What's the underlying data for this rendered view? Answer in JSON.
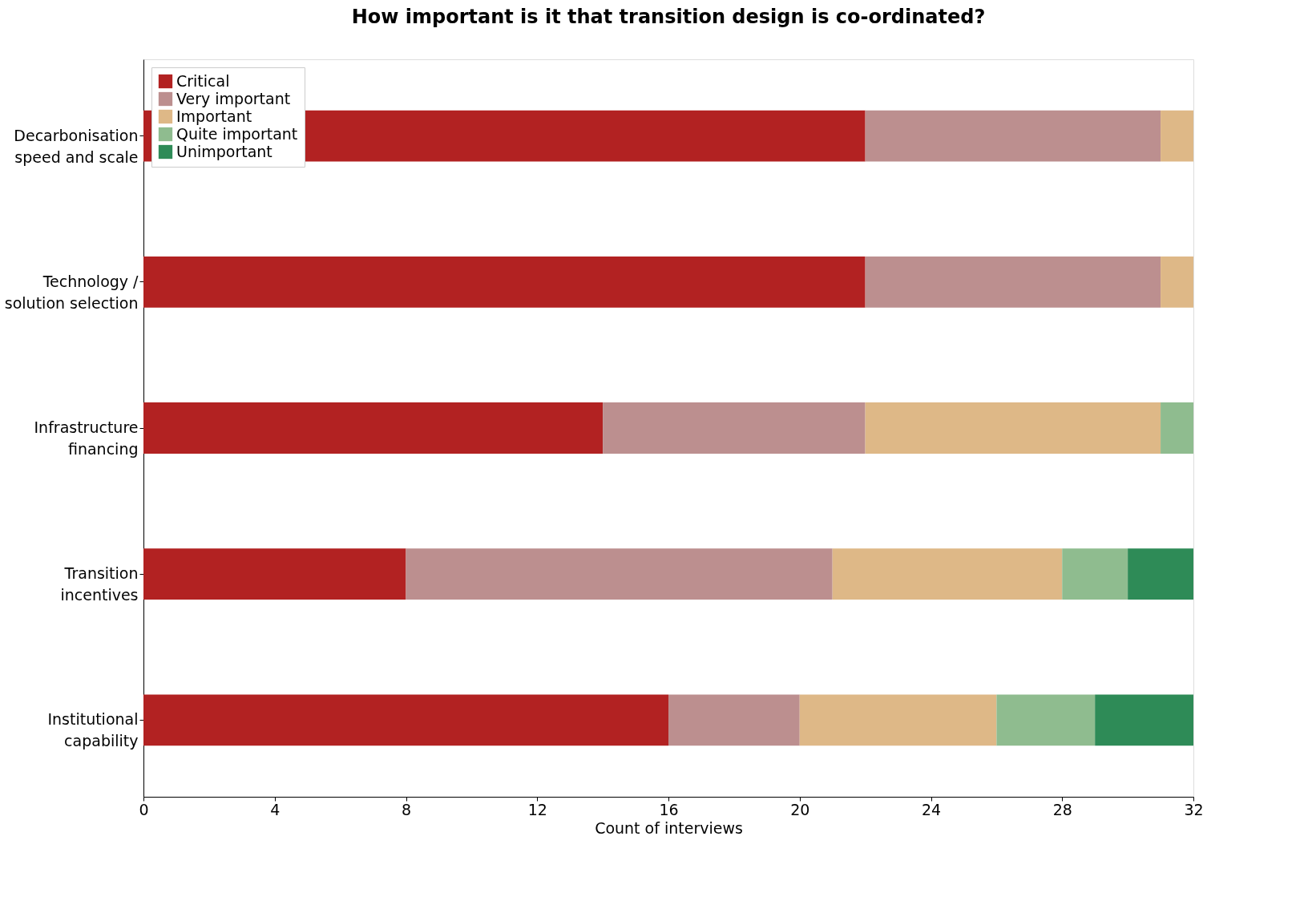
{
  "chart_data": {
    "type": "bar",
    "orientation": "horizontal",
    "stacked": true,
    "title": "How important is it that transition design is co-ordinated?",
    "xlabel": "Count of interviews",
    "categories": [
      "Decarbonisation\nspeed and scale",
      "Technology /\nsolution selection",
      "Infrastructure\nfinancing",
      "Transition\nincentives",
      "Institutional\ncapability"
    ],
    "series": [
      {
        "name": "Critical",
        "color": "#b22222",
        "values": [
          22,
          22,
          14,
          8,
          16
        ]
      },
      {
        "name": "Very important",
        "color": "#bc8f8f",
        "values": [
          9,
          9,
          8,
          13,
          4
        ]
      },
      {
        "name": "Important",
        "color": "#deb887",
        "values": [
          1,
          1,
          9,
          7,
          6
        ]
      },
      {
        "name": "Quite important",
        "color": "#8fbc8f",
        "values": [
          0,
          0,
          1,
          2,
          3
        ]
      },
      {
        "name": "Unimportant",
        "color": "#2e8b57",
        "values": [
          0,
          0,
          0,
          2,
          3
        ]
      }
    ],
    "xlim": [
      0,
      32
    ],
    "xticks": [
      0,
      4,
      8,
      12,
      16,
      20,
      24,
      28,
      32
    ],
    "grid": false,
    "legend": "top left"
  }
}
